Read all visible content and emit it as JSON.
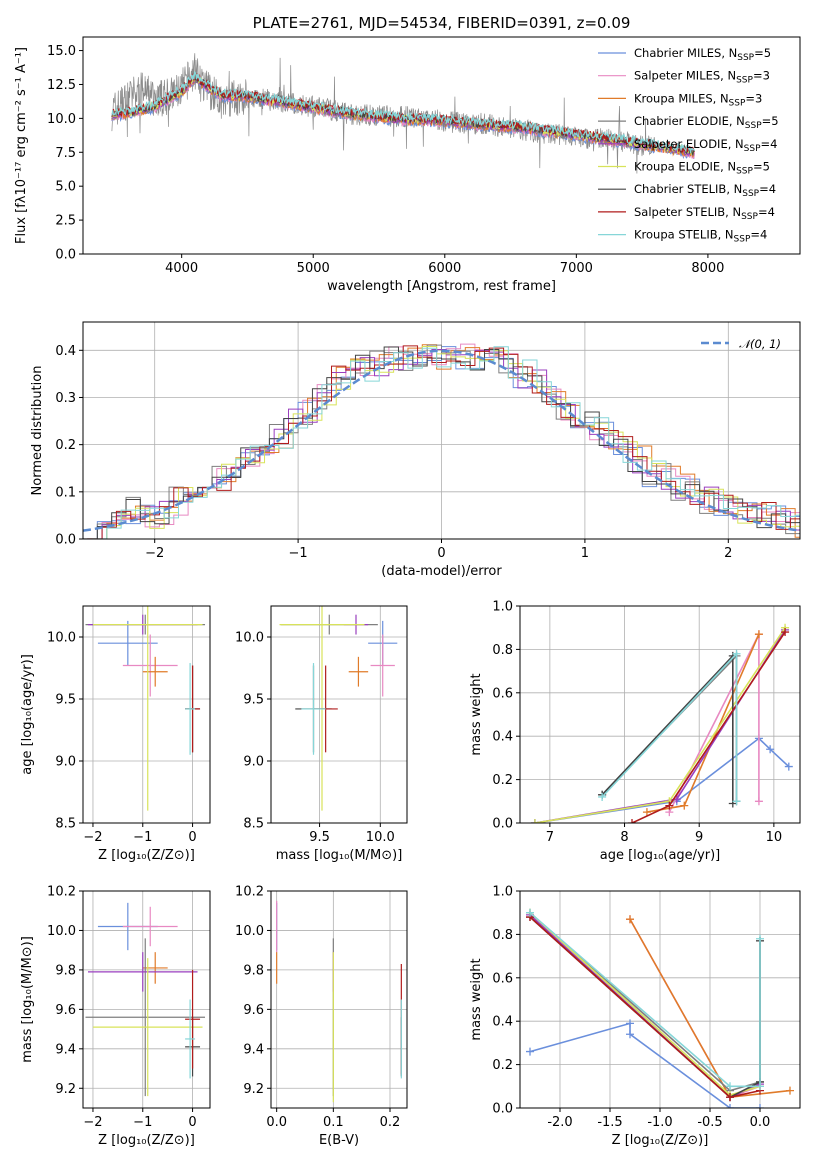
{
  "colors": {
    "Chabrier MILES": "#6a8fdc",
    "Salpeter MILES": "#e889c2",
    "Kroupa MILES": "#e07b2a",
    "Chabrier ELODIE": "#7f7f7f",
    "Salpeter ELODIE": "#9a3fbf",
    "Kroupa ELODIE": "#d8e35a",
    "Chabrier STELIB": "#444444",
    "Salpeter STELIB": "#b01c1c",
    "Kroupa STELIB": "#86d6d8"
  },
  "chart_data": [
    {
      "id": "spectrum",
      "type": "line",
      "title": "PLATE=2761, MJD=54534, FIBERID=0391, z=0.09",
      "xlabel": "wavelength [Angstrom, rest frame]",
      "ylabel": "Flux [fλ10⁻¹⁷ erg cm⁻² s⁻¹ A⁻¹]",
      "xlim": [
        3250,
        8700
      ],
      "ylim": [
        0,
        16
      ],
      "xticks": [
        4000,
        5000,
        6000,
        7000,
        8000
      ],
      "yticks": [
        0.0,
        2.5,
        5.0,
        7.5,
        10.0,
        12.5,
        15.0
      ],
      "grid": false,
      "legend_position": "top-right",
      "legend": [
        "Chabrier MILES, N_SSP=5",
        "Salpeter MILES, N_SSP=3",
        "Kroupa MILES, N_SSP=3",
        "Chabrier ELODIE, N_SSP=5",
        "Salpeter ELODIE, N_SSP=4",
        "Kroupa ELODIE, N_SSP=5",
        "Chabrier STELIB, N_SSP=4",
        "Salpeter STELIB, N_SSP=4",
        "Kroupa STELIB, N_SSP=4"
      ],
      "data_series": {
        "name": "data",
        "x": [
          3470,
          3600,
          3700,
          3800,
          3900,
          4000,
          4100,
          4200,
          4300,
          4500,
          4700,
          4900,
          5100,
          5300,
          5500,
          5700,
          5900,
          6100,
          6300,
          6500,
          6700,
          6900,
          7100,
          7300,
          7500,
          7600
        ],
        "y": [
          10.5,
          11.5,
          12.0,
          11.5,
          11.5,
          12.2,
          13.5,
          12.0,
          11.4,
          11.6,
          11.3,
          11.0,
          10.7,
          10.3,
          10.2,
          10.1,
          9.9,
          9.7,
          9.6,
          9.3,
          9.0,
          8.8,
          8.5,
          8.4,
          8.0,
          7.9
        ]
      },
      "model_series": {
        "x": [
          3470,
          3600,
          3800,
          4000,
          4100,
          4300,
          4500,
          4700,
          5000,
          5300,
          5600,
          6000,
          6300,
          6600,
          6900,
          7200,
          7500,
          7700,
          8000
        ],
        "y": [
          10.3,
          10.4,
          10.9,
          12.0,
          13.0,
          11.7,
          11.6,
          11.3,
          10.8,
          10.3,
          10.0,
          9.8,
          9.5,
          9.3,
          8.9,
          8.5,
          8.1,
          7.8,
          7.3
        ]
      }
    },
    {
      "id": "residuals",
      "type": "line",
      "xlabel": "(data-model)/error",
      "ylabel": "Normed distribution",
      "xlim": [
        -2.5,
        2.5
      ],
      "ylim": [
        0,
        0.46
      ],
      "xticks": [
        -2,
        -1,
        0,
        1,
        2
      ],
      "yticks": [
        0.0,
        0.1,
        0.2,
        0.3,
        0.4
      ],
      "grid": true,
      "legend_position": "top-right",
      "legend": [
        "𝒩(0, 1)"
      ],
      "bins": [
        -2.5,
        -2.4,
        -2.3,
        -2.2,
        -2.1,
        -2.0,
        -1.9,
        -1.8,
        -1.7,
        -1.6,
        -1.5,
        -1.4,
        -1.3,
        -1.2,
        -1.1,
        -1.0,
        -0.9,
        -0.8,
        -0.7,
        -0.6,
        -0.5,
        -0.4,
        -0.3,
        -0.2,
        -0.1,
        0.0,
        0.1,
        0.2,
        0.3,
        0.4,
        0.5,
        0.6,
        0.7,
        0.8,
        0.9,
        1.0,
        1.1,
        1.2,
        1.3,
        1.4,
        1.5,
        1.6,
        1.7,
        1.8,
        1.9,
        2.0,
        2.1,
        2.2,
        2.3,
        2.4,
        2.5
      ],
      "hist_values": [
        0.03,
        0.04,
        0.05,
        0.06,
        0.05,
        0.06,
        0.08,
        0.1,
        0.11,
        0.13,
        0.15,
        0.17,
        0.2,
        0.22,
        0.25,
        0.27,
        0.3,
        0.34,
        0.36,
        0.36,
        0.37,
        0.38,
        0.38,
        0.39,
        0.39,
        0.39,
        0.39,
        0.38,
        0.38,
        0.37,
        0.35,
        0.33,
        0.3,
        0.28,
        0.26,
        0.24,
        0.22,
        0.19,
        0.17,
        0.14,
        0.13,
        0.11,
        0.1,
        0.08,
        0.07,
        0.06,
        0.05,
        0.05,
        0.04,
        0.03
      ]
    },
    {
      "id": "age_vs_Z",
      "type": "scatter",
      "xlabel": "Z [log₁₀(Z/Z⊙)]",
      "ylabel": "age  [log₁₀(age/yr)]",
      "xlim": [
        -2.2,
        0.35
      ],
      "ylim": [
        8.5,
        10.25
      ],
      "xticks": [
        -2,
        -1,
        0
      ],
      "yticks": [
        8.5,
        9.0,
        9.5,
        10.0
      ],
      "grid": true,
      "points": [
        {
          "model": "Chabrier MILES",
          "x": -1.3,
          "y": 9.95,
          "xerr": 0.6,
          "yerr": 0.18
        },
        {
          "model": "Salpeter MILES",
          "x": -0.85,
          "y": 9.77,
          "xerr": 0.55,
          "yerr": 0.25
        },
        {
          "model": "Kroupa MILES",
          "x": -0.75,
          "y": 9.72,
          "xerr": 0.25,
          "yerr": 0.12
        },
        {
          "model": "Chabrier ELODIE",
          "x": -0.95,
          "y": 10.1,
          "xerr": 1.2,
          "yerr": 0.08
        },
        {
          "model": "Salpeter ELODIE",
          "x": -1.0,
          "y": 10.1,
          "xerr": 1.1,
          "yerr": 0.08
        },
        {
          "model": "Kroupa ELODIE",
          "x": -0.9,
          "y": 10.1,
          "xerr": 1.1,
          "yerr": 1.5
        },
        {
          "model": "Chabrier STELIB",
          "x": 0.0,
          "y": 9.42,
          "xerr": 0.15,
          "yerr": 0.35
        },
        {
          "model": "Salpeter STELIB",
          "x": 0.0,
          "y": 9.42,
          "xerr": 0.15,
          "yerr": 0.35
        },
        {
          "model": "Kroupa STELIB",
          "x": -0.05,
          "y": 9.42,
          "xerr": 0.1,
          "yerr": 0.37
        }
      ]
    },
    {
      "id": "age_vs_mass",
      "type": "scatter",
      "xlabel": "mass [log₁₀(M/M⊙)]",
      "xlim": [
        9.1,
        10.22
      ],
      "ylim": [
        8.5,
        10.25
      ],
      "xticks": [
        9.5,
        10.0
      ],
      "yticks": [
        8.5,
        9.0,
        9.5,
        10.0
      ],
      "grid": true,
      "points": [
        {
          "model": "Chabrier MILES",
          "x": 10.02,
          "y": 9.95,
          "xerr": 0.12,
          "yerr": 0.18
        },
        {
          "model": "Salpeter MILES",
          "x": 10.02,
          "y": 9.77,
          "xerr": 0.1,
          "yerr": 0.25
        },
        {
          "model": "Kroupa MILES",
          "x": 9.82,
          "y": 9.72,
          "xerr": 0.08,
          "yerr": 0.12
        },
        {
          "model": "Chabrier ELODIE",
          "x": 9.58,
          "y": 10.1,
          "xerr": 0.4,
          "yerr": 0.08
        },
        {
          "model": "Salpeter ELODIE",
          "x": 9.8,
          "y": 10.1,
          "xerr": 0.1,
          "yerr": 0.08
        },
        {
          "model": "Kroupa ELODIE",
          "x": 9.52,
          "y": 10.1,
          "xerr": 0.35,
          "yerr": 1.5
        },
        {
          "model": "Chabrier STELIB",
          "x": 9.45,
          "y": 9.42,
          "xerr": 0.15,
          "yerr": 0.35
        },
        {
          "model": "Salpeter STELIB",
          "x": 9.55,
          "y": 9.42,
          "xerr": 0.1,
          "yerr": 0.35
        },
        {
          "model": "Kroupa STELIB",
          "x": 9.45,
          "y": 9.42,
          "xerr": 0.1,
          "yerr": 0.37
        }
      ]
    },
    {
      "id": "mass_weight_vs_age",
      "type": "line",
      "xlabel": "age  [log₁₀(age/yr)]",
      "ylabel": "mass weight",
      "xlim": [
        6.6,
        10.35
      ],
      "ylim": [
        0,
        1.0
      ],
      "xticks": [
        7,
        8,
        9,
        10
      ],
      "yticks": [
        0.0,
        0.2,
        0.4,
        0.6,
        0.8,
        1.0
      ],
      "grid": true,
      "series": [
        {
          "model": "Chabrier MILES",
          "x": [
            6.8,
            8.7,
            9.8,
            9.95,
            10.2
          ],
          "y": [
            0.0,
            0.1,
            0.39,
            0.34,
            0.26
          ]
        },
        {
          "model": "Salpeter MILES",
          "x": [
            8.6,
            9.8,
            9.8
          ],
          "y": [
            0.05,
            0.87,
            0.1
          ]
        },
        {
          "model": "Kroupa MILES",
          "x": [
            8.3,
            8.8,
            9.8
          ],
          "y": [
            0.05,
            0.08,
            0.87
          ]
        },
        {
          "model": "Chabrier ELODIE",
          "x": [
            7.7,
            9.5,
            9.5
          ],
          "y": [
            0.13,
            0.77,
            0.1
          ]
        },
        {
          "model": "Salpeter ELODIE",
          "x": [
            6.8,
            8.7,
            10.15
          ],
          "y": [
            0.0,
            0.11,
            0.89
          ]
        },
        {
          "model": "Kroupa ELODIE",
          "x": [
            6.8,
            8.6,
            10.15
          ],
          "y": [
            0.0,
            0.1,
            0.9
          ]
        },
        {
          "model": "Chabrier STELIB",
          "x": [
            7.7,
            9.45,
            9.45
          ],
          "y": [
            0.13,
            0.77,
            0.09
          ]
        },
        {
          "model": "Salpeter STELIB",
          "x": [
            8.1,
            8.6,
            10.15
          ],
          "y": [
            0.0,
            0.08,
            0.88
          ]
        },
        {
          "model": "Kroupa STELIB",
          "x": [
            7.7,
            9.5,
            9.5
          ],
          "y": [
            0.12,
            0.78,
            0.1
          ]
        }
      ]
    },
    {
      "id": "mass_vs_Z",
      "type": "scatter",
      "xlabel": "Z [log₁₀(Z/Z⊙)]",
      "ylabel": "mass [log₁₀(M/M⊙)]",
      "xlim": [
        -2.2,
        0.35
      ],
      "ylim": [
        9.1,
        10.2
      ],
      "xticks": [
        -2,
        -1,
        0
      ],
      "yticks": [
        9.2,
        9.4,
        9.6,
        9.8,
        10.0,
        10.2
      ],
      "grid": true,
      "points": [
        {
          "model": "Chabrier MILES",
          "x": -1.3,
          "y": 10.02,
          "xerr": 0.6,
          "yerr": 0.12
        },
        {
          "model": "Salpeter MILES",
          "x": -0.85,
          "y": 10.02,
          "xerr": 0.55,
          "yerr": 0.1
        },
        {
          "model": "Kroupa MILES",
          "x": -0.75,
          "y": 9.81,
          "xerr": 0.25,
          "yerr": 0.08
        },
        {
          "model": "Chabrier ELODIE",
          "x": -0.95,
          "y": 9.56,
          "xerr": 1.2,
          "yerr": 0.4
        },
        {
          "model": "Salpeter ELODIE",
          "x": -1.0,
          "y": 9.79,
          "xerr": 1.1,
          "yerr": 0.1
        },
        {
          "model": "Kroupa ELODIE",
          "x": -0.9,
          "y": 9.51,
          "xerr": 1.1,
          "yerr": 0.35
        },
        {
          "model": "Chabrier STELIB",
          "x": 0.0,
          "y": 9.41,
          "xerr": 0.15,
          "yerr": 0.15
        },
        {
          "model": "Salpeter STELIB",
          "x": 0.0,
          "y": 9.55,
          "xerr": 0.15,
          "yerr": 0.25
        },
        {
          "model": "Kroupa STELIB",
          "x": -0.05,
          "y": 9.45,
          "xerr": 0.1,
          "yerr": 0.2
        }
      ]
    },
    {
      "id": "mass_vs_ebv",
      "type": "scatter",
      "xlabel": "E(B-V)",
      "xlim": [
        -0.01,
        0.23
      ],
      "ylim": [
        9.1,
        10.2
      ],
      "xticks": [
        0.0,
        0.1,
        0.2
      ],
      "yticks": [
        9.2,
        9.4,
        9.6,
        9.8,
        10.0,
        10.2
      ],
      "grid": true,
      "points": [
        {
          "model": "Chabrier MILES",
          "x": 0.0,
          "y": 10.02,
          "xerr": 0,
          "yerr": 0.12
        },
        {
          "model": "Salpeter MILES",
          "x": 0.0,
          "y": 10.02,
          "xerr": 0,
          "yerr": 0.13
        },
        {
          "model": "Kroupa MILES",
          "x": 0.0,
          "y": 9.81,
          "xerr": 0,
          "yerr": 0.08
        },
        {
          "model": "Chabrier ELODIE",
          "x": 0.1,
          "y": 9.56,
          "xerr": 0,
          "yerr": 0.4
        },
        {
          "model": "Salpeter ELODIE",
          "x": 0.1,
          "y": 9.79,
          "xerr": 0,
          "yerr": 0.1
        },
        {
          "model": "Kroupa ELODIE",
          "x": 0.1,
          "y": 9.51,
          "xerr": 0,
          "yerr": 0.38
        },
        {
          "model": "Chabrier STELIB",
          "x": 0.22,
          "y": 9.41,
          "xerr": 0,
          "yerr": 0.15
        },
        {
          "model": "Salpeter STELIB",
          "x": 0.22,
          "y": 9.55,
          "xerr": 0,
          "yerr": 0.28
        },
        {
          "model": "Kroupa STELIB",
          "x": 0.22,
          "y": 9.45,
          "xerr": 0,
          "yerr": 0.2
        }
      ]
    },
    {
      "id": "mass_weight_vs_Z",
      "type": "line",
      "xlabel": "Z [log₁₀(Z/Z⊙)]",
      "ylabel": "mass weight",
      "xlim": [
        -2.4,
        0.4
      ],
      "ylim": [
        0,
        1.0
      ],
      "xticks": [
        -2.0,
        -1.5,
        -1.0,
        -0.5,
        0.0
      ],
      "yticks": [
        0.0,
        0.2,
        0.4,
        0.6,
        0.8,
        1.0
      ],
      "grid": true,
      "series": [
        {
          "model": "Chabrier MILES",
          "x": [
            -2.3,
            -1.3,
            -1.3,
            -0.3,
            0.0
          ],
          "y": [
            0.26,
            0.39,
            0.34,
            0.0,
            0.0
          ]
        },
        {
          "model": "Salpeter MILES",
          "x": [
            -1.3,
            -0.3,
            0.0
          ],
          "y": [
            0.87,
            0.05,
            0.1
          ]
        },
        {
          "model": "Kroupa MILES",
          "x": [
            -1.3,
            -0.3,
            0.3
          ],
          "y": [
            0.87,
            0.05,
            0.08
          ]
        },
        {
          "model": "Chabrier ELODIE",
          "x": [
            -2.3,
            -0.3,
            0.0,
            0.0
          ],
          "y": [
            0.9,
            0.08,
            0.12,
            0.77
          ]
        },
        {
          "model": "Salpeter ELODIE",
          "x": [
            -2.3,
            -0.3,
            0.0
          ],
          "y": [
            0.89,
            0.05,
            0.11
          ]
        },
        {
          "model": "Kroupa ELODIE",
          "x": [
            -2.3,
            -0.3,
            0.0
          ],
          "y": [
            0.9,
            0.06,
            0.1
          ]
        },
        {
          "model": "Chabrier STELIB",
          "x": [
            -2.3,
            -0.3,
            0.0,
            0.0
          ],
          "y": [
            0.88,
            0.05,
            0.12,
            0.77
          ]
        },
        {
          "model": "Salpeter STELIB",
          "x": [
            -2.3,
            -0.3,
            0.0
          ],
          "y": [
            0.88,
            0.05,
            0.08
          ]
        },
        {
          "model": "Kroupa STELIB",
          "x": [
            -2.3,
            -0.3,
            0.0,
            0.0
          ],
          "y": [
            0.9,
            0.1,
            0.1,
            0.78
          ]
        }
      ]
    }
  ],
  "normal_label": "𝒩(0, 1)"
}
